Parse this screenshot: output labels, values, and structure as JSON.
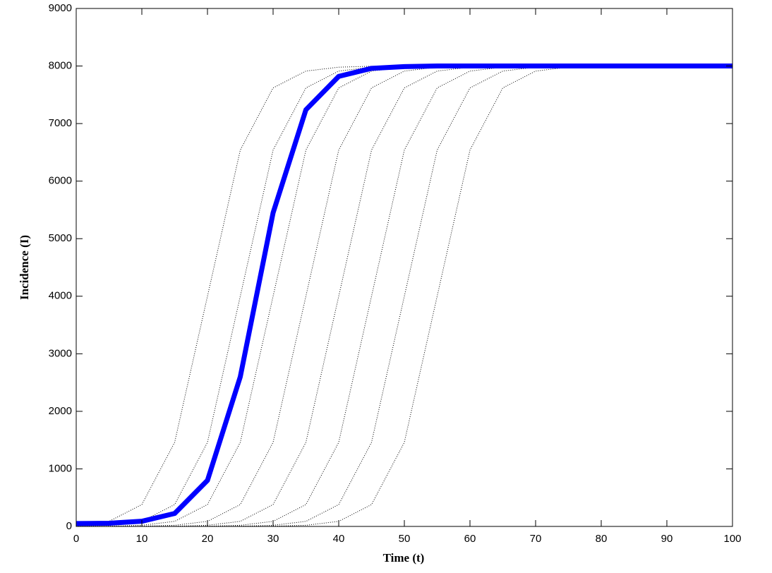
{
  "chart_data": {
    "type": "line",
    "xlabel": "Time (t)",
    "ylabel": "Incidence (I)",
    "x": [
      0,
      5,
      10,
      15,
      20,
      25,
      30,
      35,
      40,
      45,
      50,
      55,
      60,
      65,
      70,
      75,
      80,
      85,
      90,
      95,
      100
    ],
    "xlim": [
      0,
      100
    ],
    "xticks": [
      0,
      10,
      20,
      30,
      40,
      50,
      60,
      70,
      80,
      90,
      100
    ],
    "ylim": [
      0,
      9000
    ],
    "yticks": [
      0,
      1000,
      2000,
      3000,
      4000,
      5000,
      6000,
      7000,
      8000,
      9000
    ],
    "grid": false,
    "series": [
      {
        "color": "#000000",
        "linestyle": "dotted",
        "values": [
          20,
          88,
          380,
          1461,
          4000,
          6540,
          7620,
          7912,
          7980,
          7996,
          8000,
          8000,
          8000,
          8000,
          8000,
          8000,
          8000,
          8000,
          8000,
          8000,
          8000
        ]
      },
      {
        "color": "#000000",
        "linestyle": "dotted",
        "values": [
          4,
          20,
          88,
          380,
          1461,
          4000,
          6540,
          7620,
          7912,
          7980,
          7996,
          8000,
          8000,
          8000,
          8000,
          8000,
          8000,
          8000,
          8000,
          8000,
          8000
        ]
      },
      {
        "color": "#000000",
        "linestyle": "dotted",
        "values": [
          1,
          4,
          20,
          88,
          380,
          1461,
          4000,
          6540,
          7620,
          7912,
          7980,
          7996,
          8000,
          8000,
          8000,
          8000,
          8000,
          8000,
          8000,
          8000,
          8000
        ]
      },
      {
        "color": "#000000",
        "linestyle": "dotted",
        "values": [
          0,
          1,
          4,
          20,
          88,
          380,
          1461,
          4000,
          6540,
          7620,
          7912,
          7980,
          7996,
          8000,
          8000,
          8000,
          8000,
          8000,
          8000,
          8000,
          8000
        ]
      },
      {
        "color": "#000000",
        "linestyle": "dotted",
        "values": [
          0,
          0,
          1,
          4,
          20,
          88,
          380,
          1461,
          4000,
          6540,
          7620,
          7912,
          7980,
          7996,
          8000,
          8000,
          8000,
          8000,
          8000,
          8000,
          8000
        ]
      },
      {
        "color": "#000000",
        "linestyle": "dotted",
        "values": [
          0,
          0,
          0,
          1,
          4,
          20,
          88,
          380,
          1461,
          4000,
          6540,
          7620,
          7912,
          7980,
          7996,
          8000,
          8000,
          8000,
          8000,
          8000,
          8000
        ]
      },
      {
        "color": "#000000",
        "linestyle": "dotted",
        "values": [
          0,
          0,
          0,
          0,
          1,
          4,
          20,
          88,
          380,
          1461,
          4000,
          6540,
          7620,
          7912,
          7980,
          7996,
          8000,
          8000,
          8000,
          8000,
          8000
        ]
      },
      {
        "color": "#000000",
        "linestyle": "dotted",
        "values": [
          0,
          0,
          0,
          0,
          0,
          1,
          4,
          20,
          88,
          380,
          1461,
          4000,
          6540,
          7620,
          7912,
          7980,
          7996,
          8000,
          8000,
          8000,
          8000
        ]
      },
      {
        "color": "#0000ff",
        "linestyle": "solid",
        "values": [
          50,
          55,
          90,
          225,
          800,
          2600,
          5450,
          7240,
          7820,
          7960,
          7990,
          8000,
          8000,
          8000,
          8000,
          8000,
          8000,
          8000,
          8000,
          8000,
          8000
        ]
      }
    ]
  }
}
